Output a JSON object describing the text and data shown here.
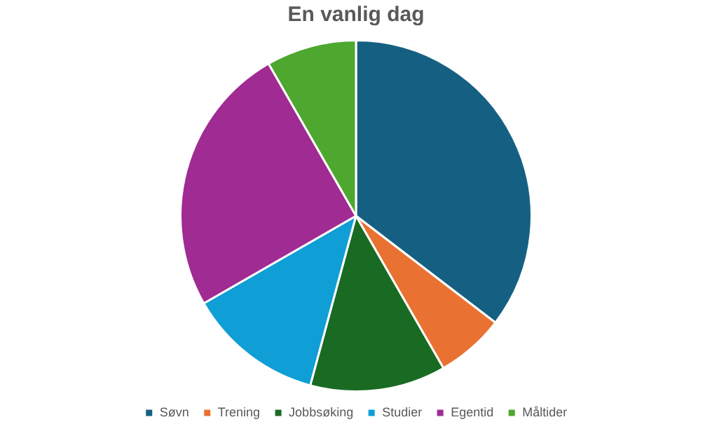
{
  "chart_data": {
    "type": "pie",
    "title": "En vanlig dag",
    "categories": [
      "Søvn",
      "Trening",
      "Jobbsøking",
      "Studier",
      "Egentid",
      "Måltider"
    ],
    "values": [
      35.4,
      6.3,
      12.5,
      12.5,
      25,
      8.3
    ],
    "colors": [
      "#156082",
      "#e97132",
      "#196b24",
      "#0f9ed5",
      "#a02b93",
      "#4ea72e"
    ],
    "legend": "bottom"
  }
}
